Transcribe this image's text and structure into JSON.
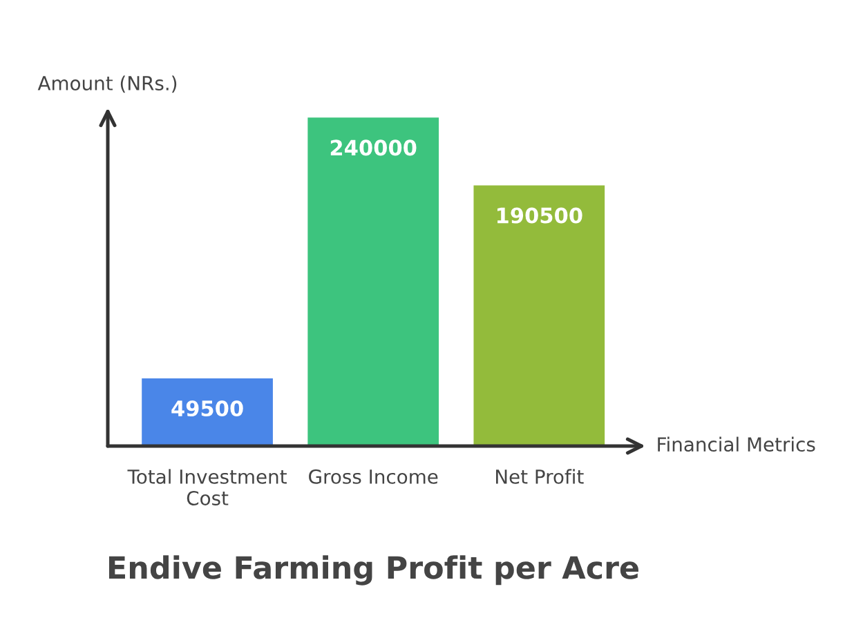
{
  "chart_data": {
    "type": "bar",
    "title": "Endive Farming Profit per Acre",
    "xlabel": "Financial Metrics",
    "ylabel": "Amount (NRs.)",
    "categories": [
      "Total Investment Cost",
      "Gross Income",
      "Net Profit"
    ],
    "values": [
      49500,
      240000,
      190500
    ],
    "colors": [
      "#4a86e8",
      "#3dc47e",
      "#93bb3b"
    ],
    "data_labels": true,
    "grid": false,
    "legend": false
  }
}
